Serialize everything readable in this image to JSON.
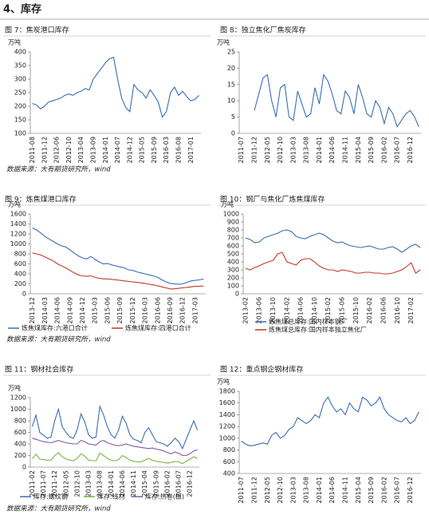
{
  "heading": "4、库存",
  "sources": [
    "数据来源：大有期货研究所，wind",
    "数据来源：大有期货研究所，wind",
    "数据来源：大有期货研究所，wind"
  ],
  "chart_data": [
    {
      "type": "line",
      "title": "图 7：焦炭港口库存",
      "y_label": "万吨",
      "color": "#3a6db5",
      "ylim": [
        100,
        400
      ],
      "yticks": [
        100,
        150,
        200,
        250,
        300,
        350,
        400
      ],
      "categories": [
        "2011-08",
        null,
        null,
        "2011-12",
        null,
        null,
        "2012-06",
        null,
        null,
        "2012-10",
        null,
        null,
        "2013-04",
        null,
        null,
        "2013-09",
        null,
        null,
        "2014-01",
        null,
        null,
        "2014-07",
        null,
        null,
        "2014-12",
        null,
        null,
        "2015-05",
        null,
        null,
        "2015-09",
        null,
        null,
        "2016-03",
        null,
        null,
        "2016-08",
        null,
        null,
        "2017-01",
        null,
        null
      ],
      "values": [
        210,
        205,
        190,
        200,
        215,
        220,
        225,
        230,
        240,
        245,
        240,
        250,
        255,
        265,
        260,
        300,
        320,
        340,
        360,
        375,
        380,
        300,
        230,
        195,
        180,
        280,
        260,
        250,
        230,
        260,
        240,
        215,
        160,
        180,
        250,
        270,
        240,
        255,
        235,
        220,
        225,
        240
      ]
    },
    {
      "type": "line",
      "title": "图 8：独立焦化厂焦炭库存",
      "y_label": "万吨",
      "color": "#3a6db5",
      "ylim": [
        0,
        25
      ],
      "yticks": [
        0,
        5,
        10,
        15,
        20,
        25
      ],
      "categories": [
        "2011-07",
        null,
        null,
        "2011-12",
        null,
        null,
        "2012-05",
        null,
        null,
        "2012-10",
        null,
        null,
        "2013-03",
        null,
        null,
        "2013-08",
        null,
        null,
        "2014-01",
        null,
        null,
        "2014-06",
        null,
        null,
        "2014-11",
        null,
        null,
        "2015-04",
        null,
        null,
        "2015-09",
        null,
        null,
        "2016-02",
        null,
        null,
        "2016-07",
        null,
        null,
        "2016-12",
        null,
        null
      ],
      "values": [
        null,
        null,
        null,
        7,
        12,
        17,
        18,
        10,
        5,
        14,
        15,
        5,
        4,
        13,
        9,
        5,
        6,
        14,
        9,
        18,
        16,
        12,
        7,
        6,
        13,
        11,
        6,
        15,
        11,
        6,
        5,
        10,
        8,
        3,
        8,
        6,
        2,
        4,
        6,
        7,
        5,
        2
      ]
    },
    {
      "type": "line",
      "title": "图 9：炼焦煤港口库存",
      "y_label": "万吨",
      "ylim": [
        0,
        1600
      ],
      "yticks": [
        0,
        200,
        400,
        600,
        800,
        1000,
        1200,
        1400,
        1600
      ],
      "categories": [
        "2013-12",
        null,
        null,
        "2014-03",
        null,
        null,
        "2014-06",
        null,
        null,
        "2014-09",
        null,
        null,
        "2014-12",
        null,
        null,
        "2015-03",
        null,
        null,
        "2015-06",
        null,
        null,
        "2015-09",
        null,
        null,
        "2015-12",
        null,
        null,
        "2016-03",
        null,
        null,
        "2016-06",
        null,
        null,
        "2016-09",
        null,
        null,
        "2016-12",
        null,
        null,
        "2017-03",
        null,
        null
      ],
      "series": [
        {
          "name": "炼焦煤库存:六港口合计",
          "color": "#3a6db5",
          "values": [
            1320,
            1280,
            1220,
            1150,
            1100,
            1050,
            1000,
            960,
            940,
            880,
            820,
            760,
            720,
            700,
            750,
            690,
            640,
            600,
            610,
            580,
            560,
            540,
            520,
            480,
            470,
            440,
            420,
            400,
            380,
            360,
            330,
            280,
            240,
            210,
            200,
            190,
            200,
            230,
            260,
            270,
            280,
            300
          ]
        },
        {
          "name": "炼焦煤库存:四港口合计",
          "color": "#c0392b",
          "values": [
            820,
            800,
            780,
            740,
            700,
            660,
            600,
            560,
            520,
            470,
            420,
            380,
            360,
            350,
            360,
            330,
            310,
            300,
            300,
            290,
            280,
            270,
            260,
            250,
            240,
            230,
            220,
            210,
            190,
            180,
            160,
            140,
            120,
            100,
            100,
            110,
            120,
            130,
            140,
            150,
            150,
            160
          ]
        }
      ]
    },
    {
      "type": "line",
      "title": "图 10：钢厂与焦化厂炼焦煤库存",
      "y_label": "万吨",
      "ylim": [
        0,
        1000
      ],
      "yticks": [
        0,
        100,
        200,
        300,
        400,
        500,
        600,
        700,
        800,
        900,
        1000
      ],
      "categories": [
        "2013-02",
        null,
        null,
        "2013-06",
        null,
        null,
        "2013-10",
        null,
        null,
        "2014-02",
        null,
        null,
        "2014-06",
        null,
        null,
        "2014-10",
        null,
        null,
        "2015-02",
        null,
        null,
        "2015-06",
        null,
        null,
        "2015-10",
        null,
        null,
        "2016-02",
        null,
        null,
        "2016-06",
        null,
        null,
        "2016-10",
        null,
        null,
        "2017-02",
        null,
        null
      ],
      "series": [
        {
          "name": "炼焦煤总库存:国内样本钢厂",
          "color": "#3a6db5",
          "values": [
            700,
            680,
            640,
            650,
            700,
            720,
            740,
            760,
            790,
            800,
            780,
            720,
            700,
            690,
            720,
            740,
            760,
            740,
            700,
            660,
            640,
            650,
            620,
            600,
            590,
            580,
            590,
            600,
            580,
            560,
            560,
            580,
            590,
            560,
            520,
            560,
            600,
            620,
            580
          ]
        },
        {
          "name": "炼焦煤总库存:国内样本独立焦化厂",
          "color": "#c0392b",
          "values": [
            320,
            300,
            330,
            350,
            380,
            400,
            420,
            500,
            520,
            400,
            380,
            360,
            420,
            440,
            440,
            400,
            350,
            320,
            300,
            300,
            280,
            300,
            290,
            280,
            260,
            260,
            270,
            270,
            260,
            260,
            250,
            250,
            260,
            280,
            300,
            340,
            390,
            260,
            300
          ]
        }
      ]
    },
    {
      "type": "line",
      "title": "图 11：钢材社会库存",
      "y_label": "万吨",
      "ylim": [
        0,
        1200
      ],
      "yticks": [
        0,
        200,
        400,
        600,
        800,
        1000,
        1200
      ],
      "categories": [
        "2011-02",
        null,
        null,
        "2011-07",
        null,
        null,
        "2011-12",
        null,
        null,
        "2012-05",
        null,
        null,
        "2012-10",
        null,
        null,
        "2013-03",
        null,
        null,
        "2013-08",
        null,
        null,
        "2014-01",
        null,
        null,
        "2014-06",
        null,
        null,
        "2014-11",
        null,
        null,
        "2015-04",
        null,
        null,
        "2015-09",
        null,
        null,
        "2016-02",
        null,
        null,
        "2016-07",
        null,
        null,
        "2016-12",
        null,
        null
      ],
      "series": [
        {
          "name": "库存:螺纹钢",
          "color": "#3a6db5",
          "values": [
            700,
            900,
            600,
            550,
            500,
            520,
            800,
            1000,
            700,
            600,
            520,
            500,
            650,
            920,
            780,
            560,
            500,
            520,
            1050,
            900,
            700,
            560,
            500,
            640,
            880,
            760,
            560,
            480,
            460,
            420,
            600,
            680,
            560,
            440,
            420,
            400,
            360,
            420,
            500,
            440,
            320,
            480,
            640,
            800,
            640
          ]
        },
        {
          "name": "库存:线材",
          "color": "#7cb342",
          "values": [
            150,
            220,
            140,
            130,
            120,
            120,
            200,
            250,
            180,
            140,
            120,
            110,
            150,
            230,
            190,
            120,
            110,
            110,
            240,
            200,
            150,
            120,
            110,
            130,
            200,
            170,
            120,
            100,
            90,
            90,
            120,
            150,
            120,
            100,
            90,
            80,
            70,
            80,
            100,
            90,
            60,
            100,
            140,
            180,
            150
          ]
        },
        {
          "name": "库存:热卷(板)",
          "color": "#7b5ea7",
          "values": [
            500,
            480,
            460,
            440,
            430,
            420,
            440,
            460,
            440,
            420,
            410,
            400,
            400,
            460,
            440,
            400,
            390,
            380,
            440,
            460,
            420,
            400,
            380,
            370,
            380,
            400,
            380,
            360,
            350,
            340,
            330,
            320,
            330,
            310,
            300,
            280,
            250,
            230,
            260,
            240,
            200,
            200,
            230,
            280,
            300
          ]
        }
      ]
    },
    {
      "type": "line",
      "title": "图 12：重点钢企钢材库存",
      "y_label": "万吨",
      "color": "#3a6db5",
      "ylim": [
        400,
        1800
      ],
      "yticks": [
        400,
        600,
        800,
        1000,
        1200,
        1400,
        1600,
        1800
      ],
      "categories": [
        "2011-07",
        null,
        null,
        "2011-12",
        null,
        null,
        "2012-05",
        null,
        null,
        "2012-10",
        null,
        null,
        "2013-03",
        null,
        null,
        "2013-08",
        null,
        null,
        "2014-01",
        null,
        null,
        "2014-06",
        null,
        null,
        "2014-11",
        null,
        null,
        "2015-04",
        null,
        null,
        "2015-09",
        null,
        null,
        "2016-02",
        null,
        null,
        "2016-07",
        null,
        null,
        "2016-12",
        null,
        null
      ],
      "values": [
        950,
        900,
        870,
        880,
        900,
        920,
        900,
        1050,
        1100,
        1000,
        1050,
        1150,
        1200,
        1350,
        1300,
        1250,
        1300,
        1400,
        1350,
        1600,
        1700,
        1550,
        1450,
        1500,
        1400,
        1600,
        1500,
        1450,
        1700,
        1650,
        1550,
        1600,
        1700,
        1500,
        1400,
        1350,
        1300,
        1280,
        1350,
        1250,
        1300,
        1450
      ]
    }
  ]
}
